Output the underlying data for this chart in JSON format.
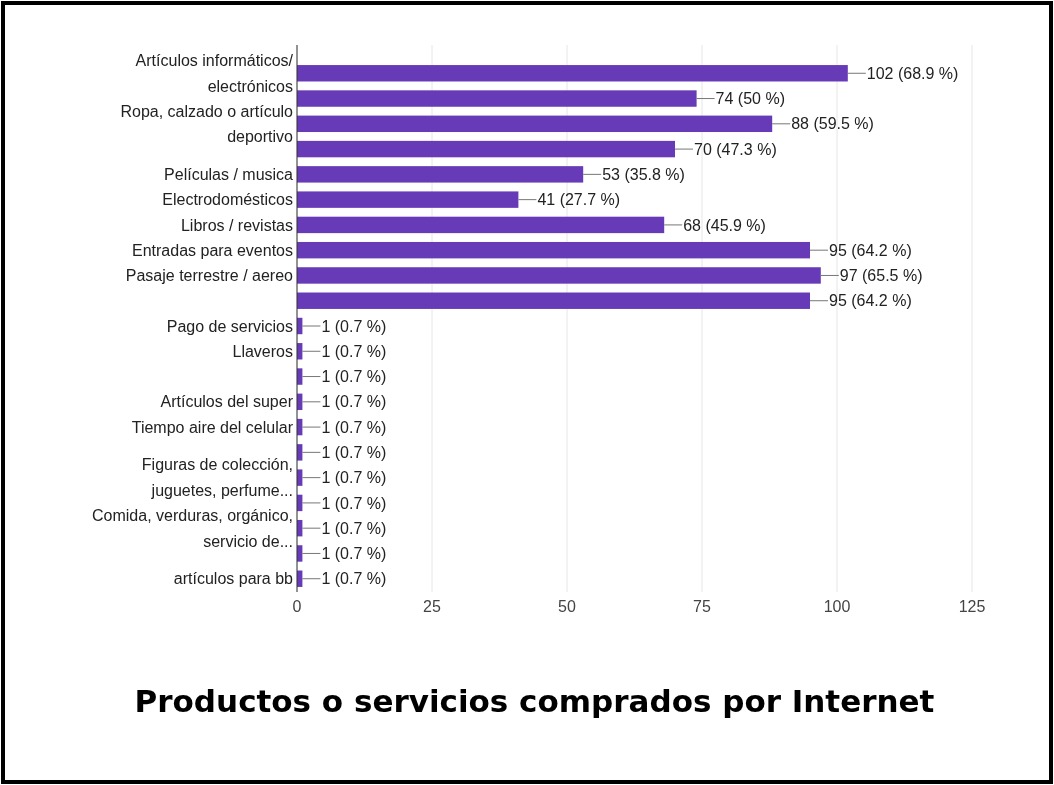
{
  "chart_data": {
    "type": "bar",
    "orientation": "horizontal",
    "title": "Productos o servicios comprados por Internet",
    "categories": [
      "Artículos informáticos/ electrónicos",
      null,
      "Ropa, calzado o artículo deportivo",
      null,
      "Películas / musica",
      "Electrodomésticos",
      "Libros / revistas",
      "Entradas para eventos",
      "Pasaje terrestre / aereo",
      null,
      "Pago de servicios",
      "Llaveros",
      null,
      "Artículos del super",
      "Tiempo aire del celular",
      null,
      "Figuras de colección, juguetes, perfume...",
      null,
      "Comida, verduras, orgánico, servicio de...",
      null,
      "artículos para bb"
    ],
    "values": [
      102,
      74,
      88,
      70,
      53,
      41,
      68,
      95,
      97,
      95,
      1,
      1,
      1,
      1,
      1,
      1,
      1,
      1,
      1,
      1,
      1
    ],
    "value_labels": [
      "102 (68.9 %)",
      "74 (50 %)",
      "88 (59.5 %)",
      "70 (47.3 %)",
      "53 (35.8 %)",
      "41 (27.7 %)",
      "68 (45.9 %)",
      "95 (64.2 %)",
      "97 (65.5 %)",
      "95 (64.2 %)",
      "1 (0.7 %)",
      "1 (0.7 %)",
      "1 (0.7 %)",
      "1 (0.7 %)",
      "1 (0.7 %)",
      "1 (0.7 %)",
      "1 (0.7 %)",
      "1 (0.7 %)",
      "1 (0.7 %)",
      "1 (0.7 %)",
      "1 (0.7 %)"
    ],
    "color": "#673ab7",
    "xlim": [
      0,
      125
    ],
    "xticks": [
      0,
      25,
      50,
      75,
      100,
      125
    ],
    "grid": "x"
  }
}
